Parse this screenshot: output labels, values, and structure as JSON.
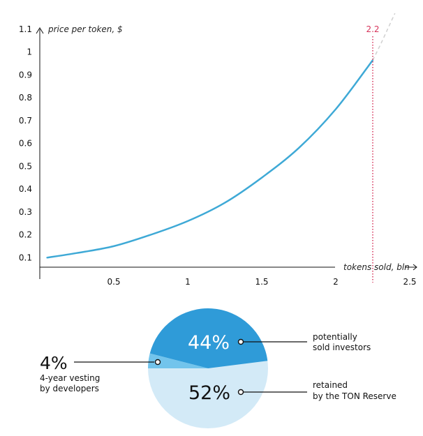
{
  "colors": {
    "curve": "#3ea9d6",
    "marker": "#d6335a",
    "projection": "#d0d0d0",
    "axis": "#111111",
    "slice_investors": "#2f9bd8",
    "slice_vesting": "#72c4ec",
    "slice_reserve": "#d3eaf7"
  },
  "chart_data": [
    {
      "type": "line",
      "title": "",
      "xlabel": "tokens sold, bln",
      "ylabel": "price per token, $",
      "x_ticks": [
        "0.5",
        "1",
        "1.5",
        "2",
        "2.5"
      ],
      "y_ticks": [
        "0.1",
        "0.2",
        "0.3",
        "0.4",
        "0.5",
        "0.6",
        "0.7",
        "0.8",
        "0.9",
        "1",
        "1.1"
      ],
      "xlim": [
        0,
        2.5
      ],
      "ylim": [
        0,
        1.1
      ],
      "grid": false,
      "series": [
        {
          "x": [
            0.05,
            0.25,
            0.5,
            0.75,
            1.0,
            1.25,
            1.5,
            1.75,
            2.0,
            2.25
          ],
          "y": [
            0.1,
            0.12,
            0.15,
            0.2,
            0.26,
            0.34,
            0.45,
            0.58,
            0.75,
            0.965
          ]
        }
      ],
      "projection": {
        "x": [
          2.25,
          2.3,
          2.35,
          2.4
        ],
        "y": [
          0.965,
          1.03,
          1.1,
          1.17
        ]
      },
      "marker": {
        "x": 2.25,
        "label": "2.2"
      }
    },
    {
      "type": "pie",
      "slices": [
        {
          "label": "44%",
          "value": 44,
          "note_lines": [
            "potentially",
            "sold investors"
          ]
        },
        {
          "label": "52%",
          "value": 52,
          "note_lines": [
            "retained",
            "by the TON Reserve"
          ]
        },
        {
          "label": "4%",
          "value": 4,
          "note_lines": [
            "4-year vesting",
            "by developers"
          ]
        }
      ]
    }
  ]
}
